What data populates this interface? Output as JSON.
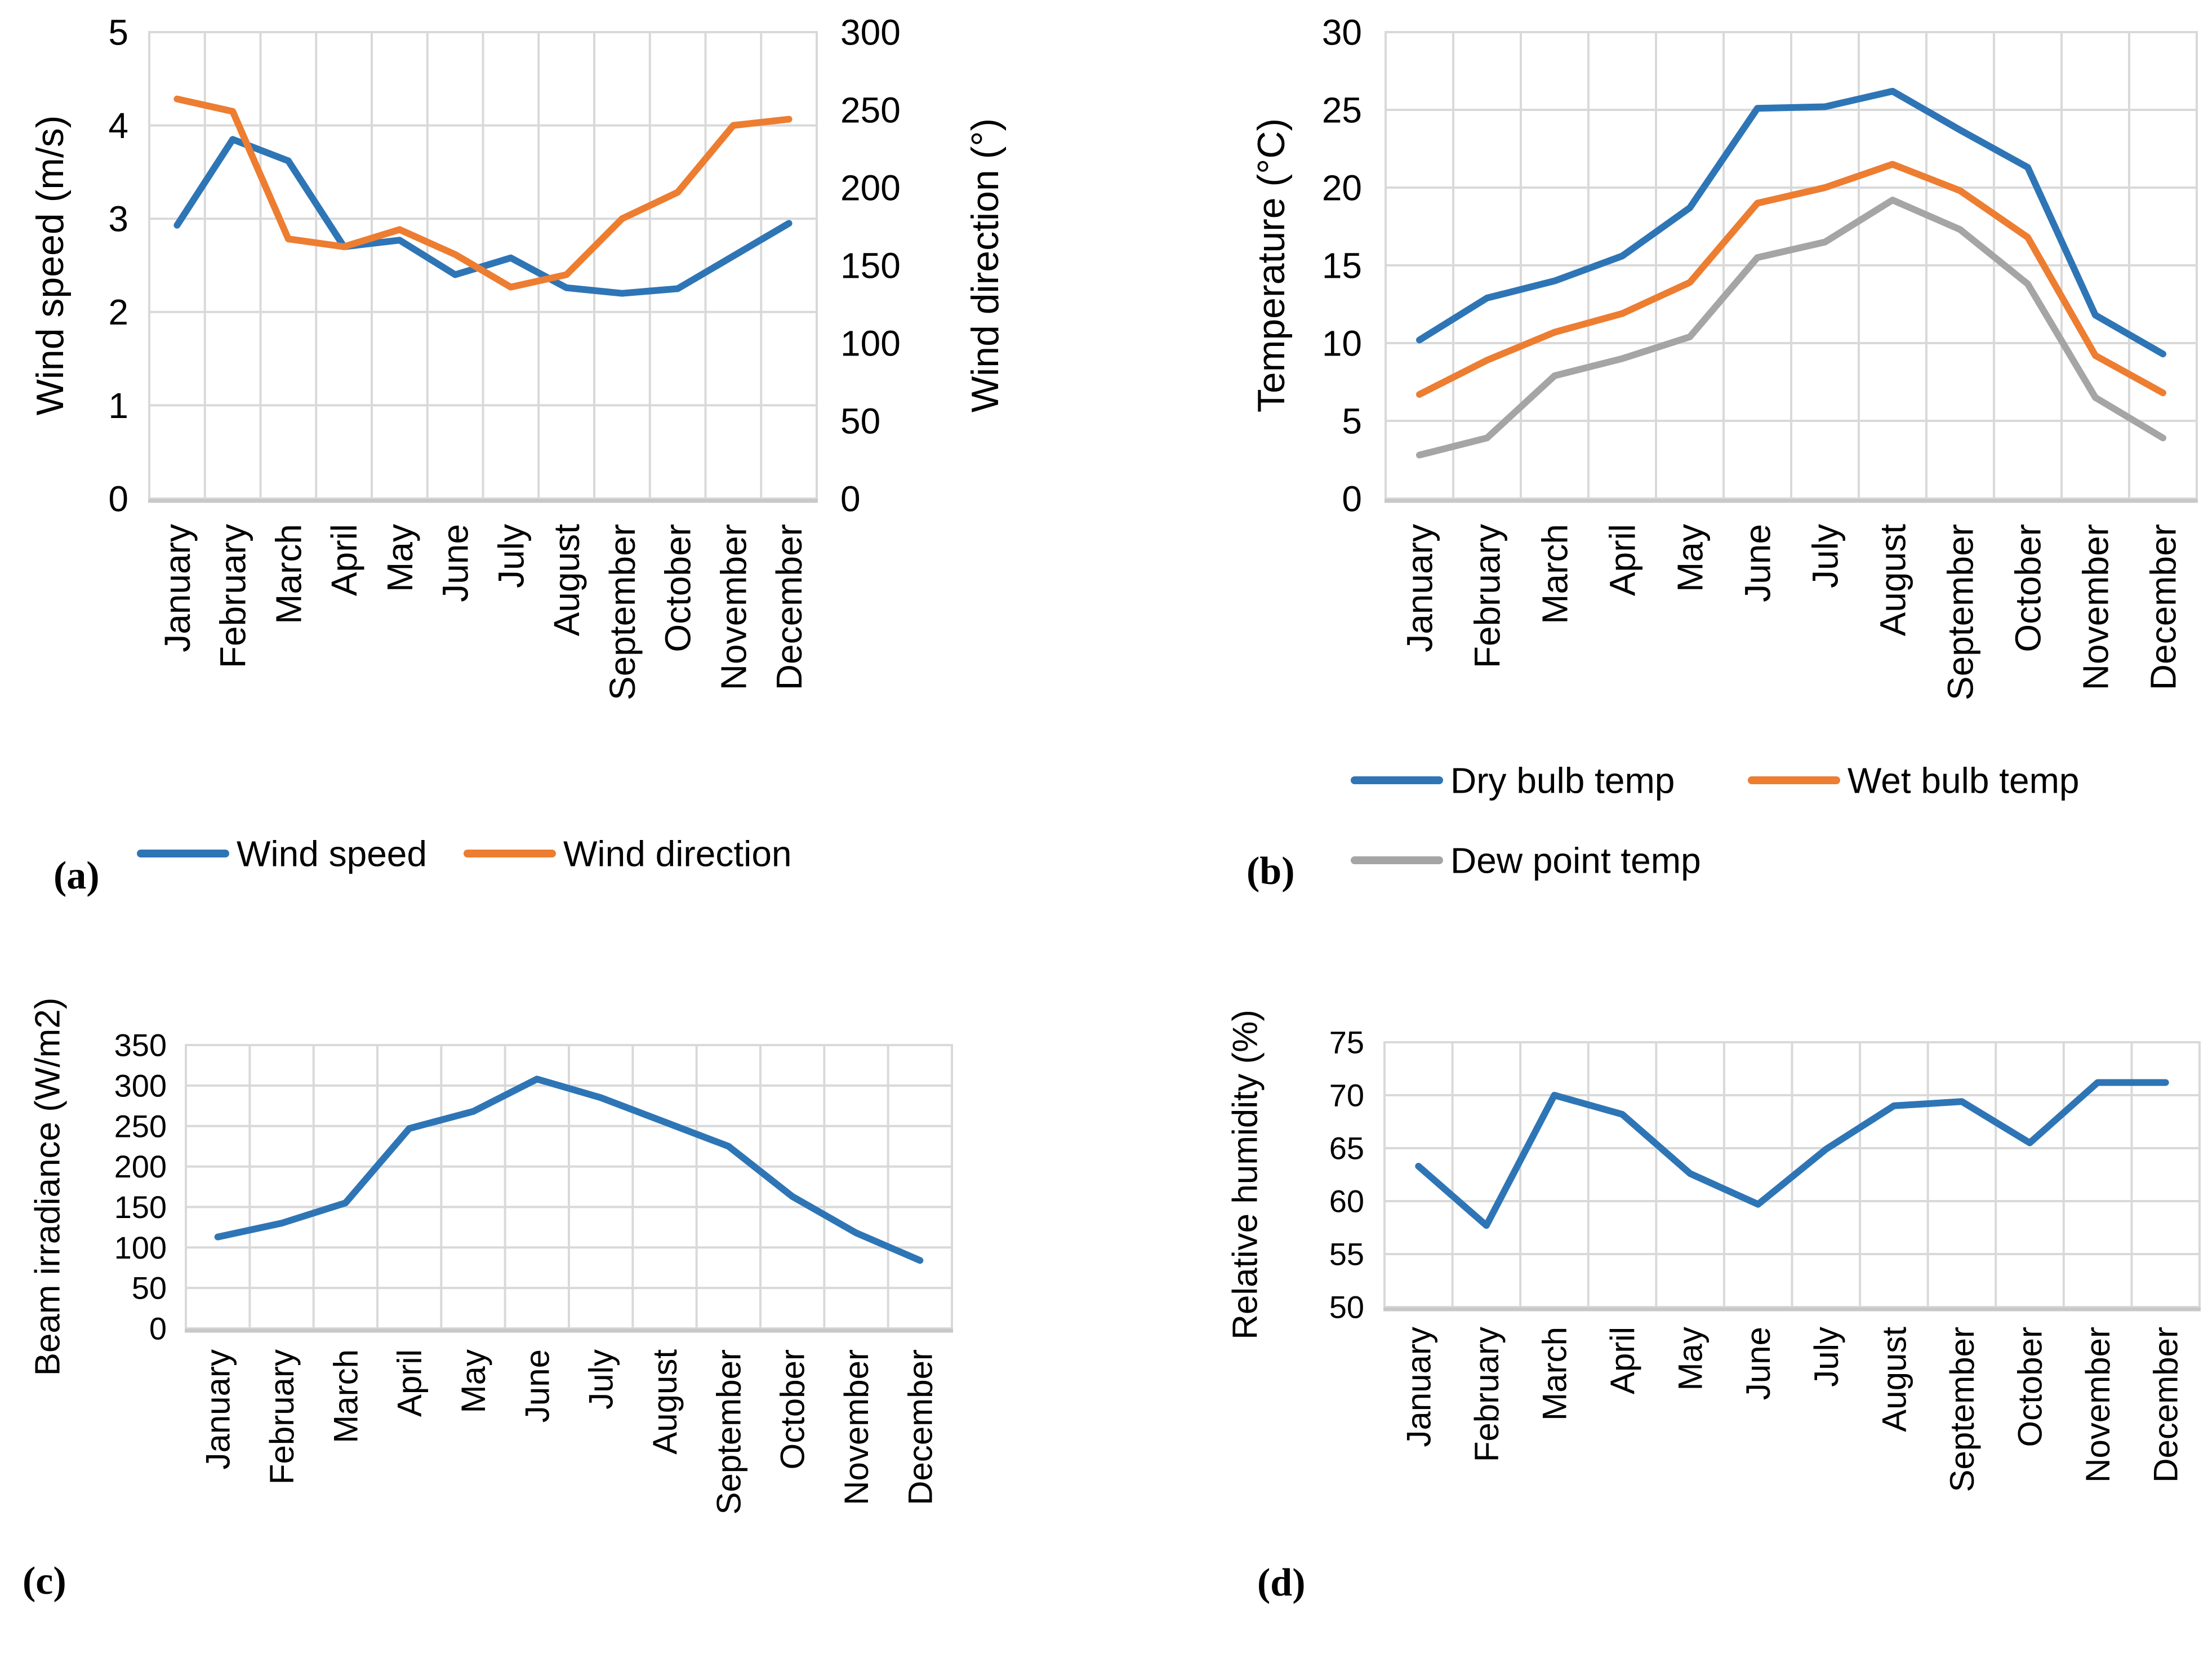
{
  "style": {
    "background": "#ffffff",
    "grid_color": "#d9d9d9",
    "plot_border_color": "#d9d9d9",
    "bottom_axis_color": "#c8c8c8",
    "text_color": "#000000",
    "series_blue": "#2e75b6",
    "series_orange": "#ed7d31",
    "series_gray": "#a5a5a5"
  },
  "chart_data": [
    {
      "type": "line",
      "panel_label": "(a)",
      "categories": [
        "January",
        "February",
        "March",
        "April",
        "May",
        "June",
        "July",
        "August",
        "September",
        "October",
        "November",
        "December"
      ],
      "series": [
        {
          "name": "Wind speed",
          "color": "#2e75b6",
          "axis": "left",
          "values": [
            2.93,
            3.85,
            3.62,
            2.7,
            2.77,
            2.4,
            2.58,
            2.26,
            2.2,
            2.25,
            2.6,
            2.95
          ]
        },
        {
          "name": "Wind direction",
          "color": "#ed7d31",
          "axis": "right",
          "values": [
            257,
            249,
            167,
            162,
            173,
            157,
            136,
            144,
            180,
            197,
            240,
            244
          ]
        }
      ],
      "left_axis": {
        "label": "Wind speed (m/s)",
        "min": 0,
        "max": 5,
        "step": 1
      },
      "right_axis": {
        "label": "Wind direction (°)",
        "min": 0,
        "max": 300,
        "step": 50
      },
      "legend_position": "bottom",
      "grid": true
    },
    {
      "type": "line",
      "panel_label": "(b)",
      "categories": [
        "January",
        "February",
        "March",
        "April",
        "May",
        "June",
        "July",
        "August",
        "September",
        "October",
        "November",
        "December"
      ],
      "series": [
        {
          "name": "Dry bulb temp",
          "color": "#2e75b6",
          "axis": "left",
          "values": [
            10.2,
            12.9,
            14.0,
            15.6,
            18.7,
            25.1,
            25.2,
            26.2,
            23.7,
            21.3,
            11.8,
            9.3
          ]
        },
        {
          "name": "Wet bulb temp",
          "color": "#ed7d31",
          "axis": "left",
          "values": [
            6.7,
            8.9,
            10.7,
            11.9,
            13.9,
            19.0,
            20.0,
            21.5,
            19.8,
            16.8,
            9.2,
            6.8
          ]
        },
        {
          "name": "Dew point temp",
          "color": "#a5a5a5",
          "axis": "left",
          "values": [
            2.8,
            3.9,
            7.9,
            9.0,
            10.4,
            15.5,
            16.5,
            19.2,
            17.3,
            13.8,
            6.5,
            3.9
          ]
        }
      ],
      "left_axis": {
        "label": "Temperature (°C)",
        "min": 0,
        "max": 30,
        "step": 5
      },
      "legend_position": "bottom",
      "grid": true
    },
    {
      "type": "line",
      "panel_label": "(c)",
      "categories": [
        "January",
        "February",
        "March",
        "April",
        "May",
        "June",
        "July",
        "August",
        "September",
        "October",
        "November",
        "December"
      ],
      "series": [
        {
          "name": "Beam irradiance",
          "color": "#2e75b6",
          "axis": "left",
          "values": [
            113,
            130,
            155,
            247,
            268,
            308,
            285,
            255,
            225,
            163,
            118,
            84
          ]
        }
      ],
      "left_axis": {
        "label": "Beam irradiance (W/m2)",
        "min": 0,
        "max": 350,
        "step": 50
      },
      "legend_position": "none",
      "grid": true
    },
    {
      "type": "line",
      "panel_label": "(d)",
      "categories": [
        "January",
        "February",
        "March",
        "April",
        "May",
        "June",
        "July",
        "August",
        "September",
        "October",
        "November",
        "December"
      ],
      "series": [
        {
          "name": "Relative humidity",
          "color": "#2e75b6",
          "axis": "left",
          "values": [
            63.3,
            57.7,
            70.0,
            68.2,
            62.6,
            59.7,
            64.9,
            69.0,
            69.4,
            65.5,
            71.2,
            71.2
          ]
        }
      ],
      "left_axis": {
        "label": "Relative humidity (%)",
        "min": 50,
        "max": 75,
        "step": 5
      },
      "legend_position": "none",
      "grid": true
    }
  ]
}
